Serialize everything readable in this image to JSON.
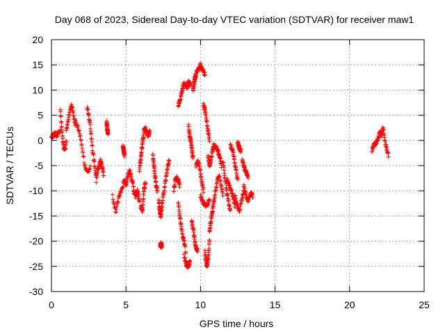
{
  "chart_data": {
    "type": "scatter",
    "title": "Day 068 of 2023, Sidereal Day-to-day VTEC variation (SDTVAR) for receiver maw1",
    "xlabel": "GPS time / hours",
    "ylabel": "SDTVAR / TECUs",
    "xlim": [
      0,
      25
    ],
    "ylim": [
      -30,
      20
    ],
    "xticks": [
      0,
      5,
      10,
      15,
      20,
      25
    ],
    "yticks": [
      -30,
      -25,
      -20,
      -15,
      -10,
      -5,
      0,
      5,
      10,
      15,
      20
    ],
    "grid": true,
    "marker": "+",
    "color": "#ff0000",
    "series": [
      {
        "name": "SDTVAR",
        "segments": [
          {
            "x0": 0.0,
            "x1": 0.6,
            "y": [
              0.5,
              1.0,
              1.5,
              1.0,
              1.5,
              2.0
            ]
          },
          {
            "x0": 0.6,
            "x1": 1.0,
            "y": [
              6.0,
              3.0,
              0.0,
              -1.5,
              -2.0,
              0.0
            ]
          },
          {
            "x0": 1.0,
            "x1": 1.6,
            "y": [
              2.0,
              4.0,
              6.0,
              7.0,
              5.0,
              3.0
            ]
          },
          {
            "x0": 1.6,
            "x1": 2.6,
            "y": [
              4.0,
              3.0,
              2.0,
              0.0,
              -2.0,
              -5.0,
              -6.0,
              -6.5,
              -5.0
            ]
          },
          {
            "x0": 2.4,
            "x1": 3.0,
            "y": [
              6.5,
              5.0,
              3.0,
              0.0,
              -3.0,
              -5.0,
              -7.0
            ]
          },
          {
            "x0": 3.0,
            "x1": 3.5,
            "y": [
              -8.0,
              -6.0,
              -5.0,
              -4.0,
              -5.0,
              -7.0
            ]
          },
          {
            "x0": 3.7,
            "x1": 3.8,
            "y": [
              3.5,
              2.0,
              1.5
            ]
          },
          {
            "x0": 4.1,
            "x1": 5.0,
            "y": [
              -11.0,
              -13.0,
              -14.0,
              -12.5,
              -11.0,
              -10.0,
              -9.0,
              -8.0,
              -8.5
            ]
          },
          {
            "x0": 5.0,
            "x1": 5.5,
            "y": [
              -9.0,
              -7.0,
              -6.0,
              -7.5,
              -9.0
            ]
          },
          {
            "x0": 4.8,
            "x1": 4.9,
            "y": [
              -1.0,
              -2.0,
              -3.0
            ]
          },
          {
            "x0": 5.5,
            "x1": 5.9,
            "y": [
              -10.0,
              -11.0,
              -10.0,
              -12.0
            ]
          },
          {
            "x0": 5.9,
            "x1": 6.2,
            "y": [
              -6.0,
              -4.0,
              -2.0,
              0.0,
              1.0
            ]
          },
          {
            "x0": 6.2,
            "x1": 6.6,
            "y": [
              2.0,
              2.5,
              1.5,
              1.0,
              2.0
            ]
          },
          {
            "x0": 6.0,
            "x1": 6.3,
            "y": [
              -13.0,
              -14.0,
              -10.0,
              -8.0
            ]
          },
          {
            "x0": 6.8,
            "x1": 7.1,
            "y": [
              -3.0,
              -5.0,
              -7.0,
              -9.0,
              -10.0
            ]
          },
          {
            "x0": 7.2,
            "x1": 7.4,
            "y": [
              -12.0,
              -14.0,
              -15.0,
              -13.0
            ]
          },
          {
            "x0": 7.3,
            "x1": 7.4,
            "y": [
              -21.0,
              -20.5,
              -21.0
            ]
          },
          {
            "x0": 7.4,
            "x1": 7.9,
            "y": [
              -13.0,
              -11.0,
              -9.0,
              -7.0,
              -5.0,
              -4.0
            ]
          },
          {
            "x0": 8.2,
            "x1": 8.6,
            "y": [
              -10.0,
              -8.0,
              -7.5,
              -8.0,
              -9.0
            ]
          },
          {
            "x0": 8.5,
            "x1": 8.9,
            "y": [
              7.0,
              8.0,
              10.0,
              11.5
            ]
          },
          {
            "x0": 8.5,
            "x1": 9.0,
            "y": [
              -12.0,
              -15.0,
              -17.0,
              -19.0,
              -20.0,
              -22.0
            ]
          },
          {
            "x0": 8.9,
            "x1": 9.3,
            "y": [
              -23.0,
              -24.5,
              -25.0,
              -24.0
            ]
          },
          {
            "x0": 9.0,
            "x1": 9.3,
            "y": [
              11.0,
              10.5,
              11.5,
              11.0
            ]
          },
          {
            "x0": 9.2,
            "x1": 9.5,
            "y": [
              3.0,
              1.0,
              0.0,
              -2.0,
              -3.5
            ]
          },
          {
            "x0": 9.4,
            "x1": 9.8,
            "y": [
              -16.0,
              -18.0,
              -21.0,
              -22.0
            ]
          },
          {
            "x0": 9.5,
            "x1": 9.7,
            "y": [
              10.0,
              12.0,
              13.0
            ]
          },
          {
            "x0": 9.7,
            "x1": 10.3,
            "y": [
              13.5,
              14.0,
              15.0,
              14.0,
              13.0
            ]
          },
          {
            "x0": 9.7,
            "x1": 10.2,
            "y": [
              -5.0,
              -4.0,
              -5.5,
              -8.0,
              -10.0
            ]
          },
          {
            "x0": 10.0,
            "x1": 10.6,
            "y": [
              -11.0,
              -12.5,
              -13.0,
              -12.0
            ]
          },
          {
            "x0": 10.2,
            "x1": 10.6,
            "y": [
              7.0,
              6.0,
              4.0,
              2.0,
              0.0
            ]
          },
          {
            "x0": 10.3,
            "x1": 10.6,
            "y": [
              -22.0,
              -24.5,
              -25.0,
              -23.0,
              -20.0
            ]
          },
          {
            "x0": 10.6,
            "x1": 10.9,
            "y": [
              -18.0,
              -16.0,
              -14.0,
              -12.0
            ]
          },
          {
            "x0": 10.5,
            "x1": 10.9,
            "y": [
              -3.0,
              -5.0,
              -4.0,
              -2.0,
              -1.0
            ]
          },
          {
            "x0": 10.9,
            "x1": 11.5,
            "y": [
              -12.0,
              -10.0,
              -8.0,
              -7.0,
              -9.0,
              -11.0
            ]
          },
          {
            "x0": 11.0,
            "x1": 11.4,
            "y": [
              -1.0,
              -2.0,
              -3.0,
              -5.0
            ]
          },
          {
            "x0": 11.5,
            "x1": 12.0,
            "y": [
              -4.0,
              -7.0,
              -10.0,
              -12.0,
              -14.0
            ]
          },
          {
            "x0": 11.8,
            "x1": 12.3,
            "y": [
              -8.0,
              -9.0,
              -10.0,
              -11.0,
              -13.0
            ]
          },
          {
            "x0": 12.0,
            "x1": 12.5,
            "y": [
              -1.0,
              -2.0,
              -5.0,
              -8.0
            ]
          },
          {
            "x0": 12.3,
            "x1": 12.9,
            "y": [
              -11.0,
              -13.0,
              -14.0,
              -12.0,
              -10.0
            ]
          },
          {
            "x0": 12.5,
            "x1": 12.7,
            "y": [
              -0.5,
              -1.5,
              -2.0
            ]
          },
          {
            "x0": 12.8,
            "x1": 13.2,
            "y": [
              -4.0,
              -6.0,
              -7.5
            ]
          },
          {
            "x0": 12.9,
            "x1": 13.5,
            "y": [
              -9.0,
              -11.0,
              -12.0,
              -10.5,
              -11.0
            ]
          },
          {
            "x0": 21.5,
            "x1": 22.0,
            "y": [
              -2.0,
              -1.0,
              -0.5,
              0.0,
              1.5
            ]
          },
          {
            "x0": 22.0,
            "x1": 22.6,
            "y": [
              2.0,
              1.0,
              2.5,
              0.0,
              -1.5,
              -3.0
            ]
          }
        ]
      }
    ]
  }
}
